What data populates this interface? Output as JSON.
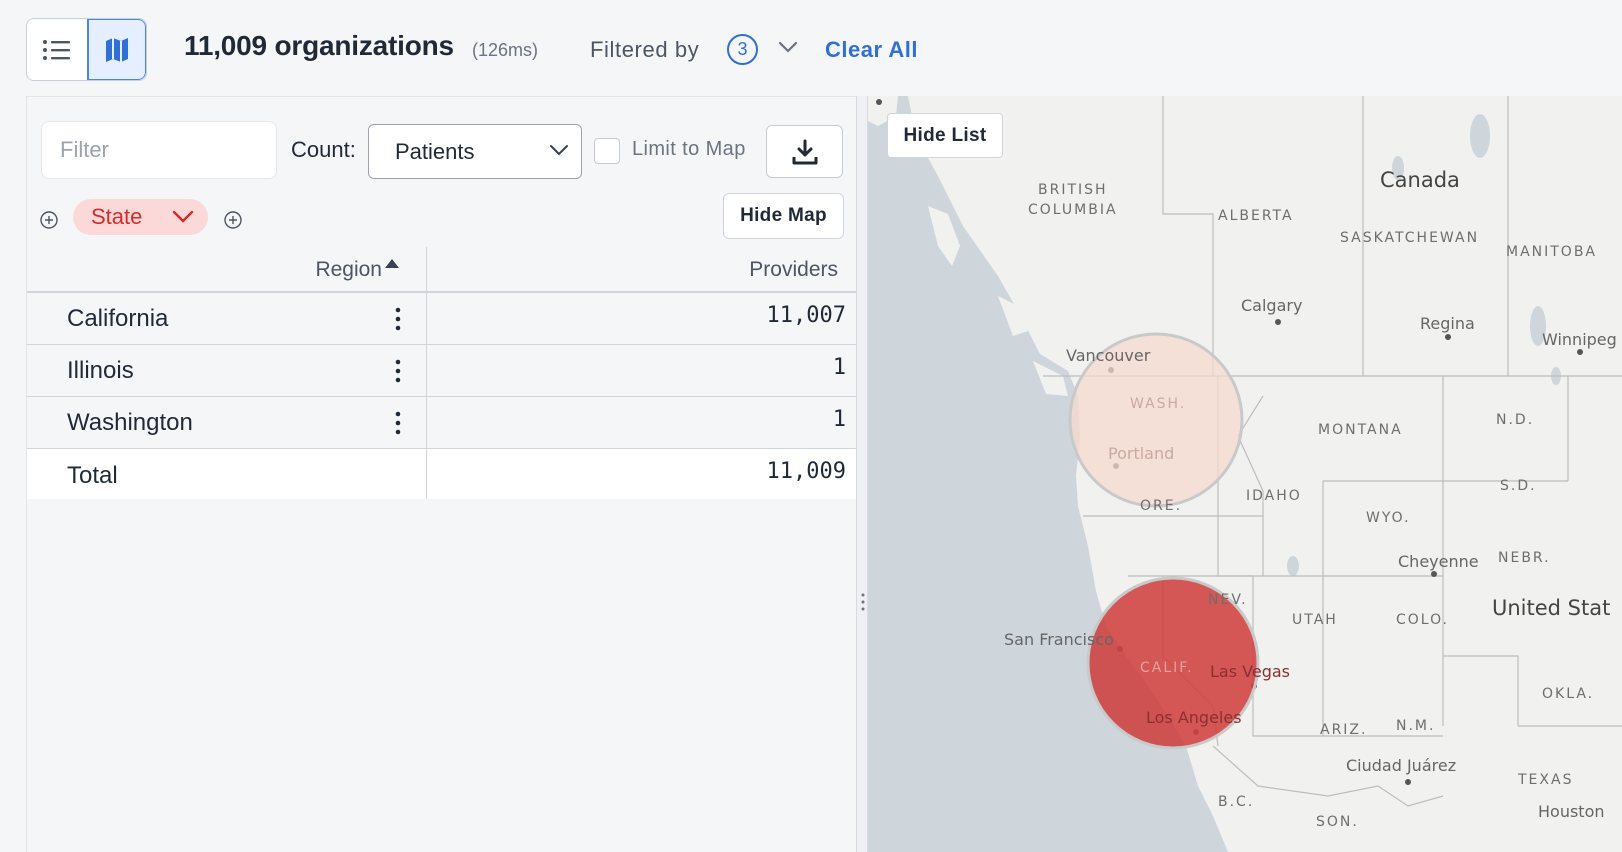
{
  "header": {
    "view_list_icon": "list-icon",
    "view_map_icon": "map-icon",
    "count_text": "11,009 organizations",
    "query_time": "(126ms)",
    "filtered_by_label": "Filtered by",
    "filter_count": "3",
    "clear_all_label": "Clear All"
  },
  "controls": {
    "filter_placeholder": "Filter",
    "count_label": "Count:",
    "count_selected": "Patients",
    "limit_to_map_label": "Limit to Map",
    "limit_to_map_checked": false,
    "download_icon": "download-icon",
    "hide_map_label": "Hide Map",
    "group_chip_label": "State",
    "group_chip_color": "#d52b2b"
  },
  "table": {
    "columns": [
      "Region",
      "Providers"
    ],
    "sort": {
      "column": "Region",
      "direction": "asc"
    },
    "rows": [
      {
        "region": "California",
        "providers": "11,007"
      },
      {
        "region": "Illinois",
        "providers": "1"
      },
      {
        "region": "Washington",
        "providers": "1"
      }
    ],
    "total": {
      "label": "Total",
      "providers": "11,009"
    }
  },
  "map": {
    "hide_list_label": "Hide List",
    "colors": {
      "land": "#f1f1ef",
      "water": "#cfd6db",
      "border": "#bdbdbd",
      "bubble_large": "#cf4040",
      "bubble_small": "#f6d9cf"
    },
    "labels": {
      "canada": "Canada",
      "united_states": "United Stat",
      "british_columbia_1": "BRITISH",
      "british_columbia_2": "COLUMBIA",
      "alberta": "ALBERTA",
      "saskatchewan": "SASKATCHEWAN",
      "manitoba": "MANITOBA",
      "montana": "MONTANA",
      "idaho": "IDAHO",
      "wyo": "WYO.",
      "nd": "N.D.",
      "sd": "S.D.",
      "nebr": "NEBR.",
      "utah": "UTAH",
      "colo": "COLO.",
      "nev": "NEV.",
      "ariz": "ARIZ.",
      "nm": "N.M.",
      "okla": "OKLA.",
      "texas": "TEXAS",
      "wash": "WASH.",
      "ore": "ORE.",
      "calif": "CALIF.",
      "bc": "B.C.",
      "son": "SON.",
      "calgary": "Calgary",
      "regina": "Regina",
      "winnipeg": "Winnipeg",
      "vancouver": "Vancouver",
      "portland": "Portland",
      "cheyenne": "Cheyenne",
      "san_francisco": "San Francisco",
      "las_vegas": "Las Vegas",
      "los_angeles": "Los Angeles",
      "ciudad_juarez": "Ciudad Juárez",
      "houston": "Houston"
    }
  }
}
